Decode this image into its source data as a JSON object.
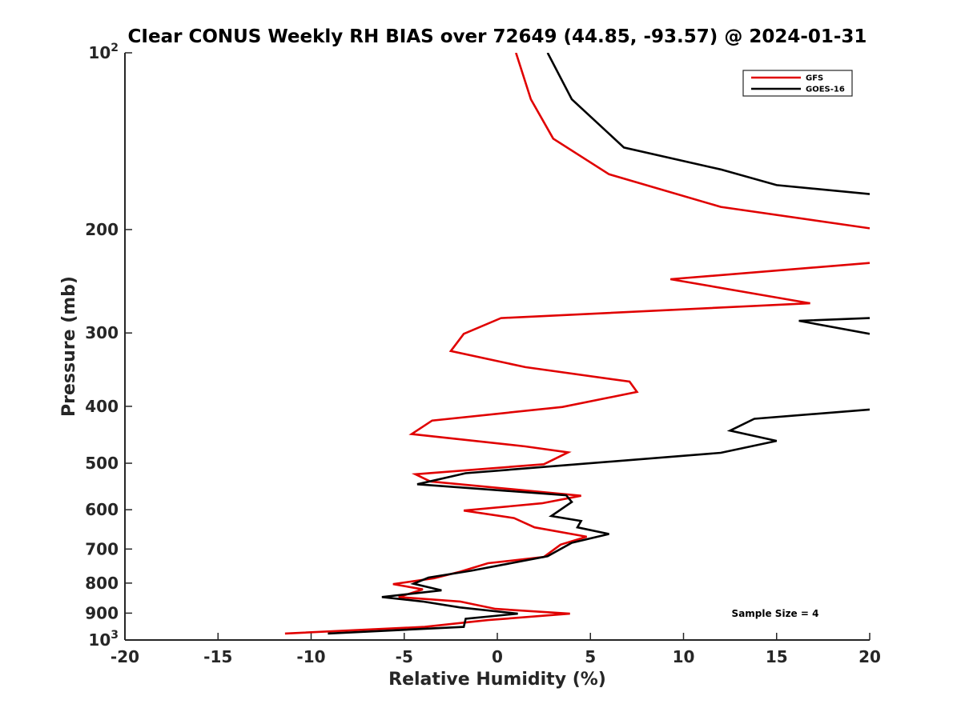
{
  "chart_data": {
    "type": "line",
    "title": "CIear CONUS Weekly RH BIAS over 72649 (44.85, -93.57) @ 2024-01-31",
    "xlabel": "Relative Humidity (%)",
    "ylabel": "Pressure (mb)",
    "xlim": [
      -20,
      20
    ],
    "ylim": [
      100,
      1000
    ],
    "yscale": "log",
    "yreversed": true,
    "grid": false,
    "legend_position": "top-right",
    "x_ticks": [
      "-20",
      "-15",
      "-10",
      "-5",
      "0",
      "5",
      "10",
      "15",
      "20"
    ],
    "y_ticks": [
      {
        "value": 100,
        "base": "10",
        "exp": "2"
      },
      {
        "value": 200,
        "base": "200",
        "exp": ""
      },
      {
        "value": 300,
        "base": "300",
        "exp": ""
      },
      {
        "value": 400,
        "base": "400",
        "exp": ""
      },
      {
        "value": 500,
        "base": "500",
        "exp": ""
      },
      {
        "value": 600,
        "base": "600",
        "exp": ""
      },
      {
        "value": 700,
        "base": "700",
        "exp": ""
      },
      {
        "value": 800,
        "base": "800",
        "exp": ""
      },
      {
        "value": 900,
        "base": "900",
        "exp": ""
      },
      {
        "value": 1000,
        "base": "10",
        "exp": "3"
      }
    ],
    "annotation": "Sample Size = 4",
    "series": [
      {
        "name": "GFS",
        "color": "#e00000",
        "points": [
          [
            1.0,
            100
          ],
          [
            1.8,
            120
          ],
          [
            3.0,
            140
          ],
          [
            6.0,
            161
          ],
          [
            12.0,
            183
          ],
          [
            20.0,
            199
          ],
          [
            null,
            null
          ],
          [
            20.0,
            228
          ],
          [
            9.3,
            243
          ],
          [
            16.8,
            267
          ],
          [
            0.2,
            283
          ],
          [
            -1.8,
            301
          ],
          [
            -2.5,
            322
          ],
          [
            1.5,
            343
          ],
          [
            7.1,
            363
          ],
          [
            7.5,
            378
          ],
          [
            3.5,
            401
          ],
          [
            -3.5,
            423
          ],
          [
            -4.6,
            446
          ],
          [
            1.5,
            468
          ],
          [
            3.8,
            479
          ],
          [
            2.5,
            502
          ],
          [
            -4.4,
            522
          ],
          [
            -3.6,
            537
          ],
          [
            4.5,
            568
          ],
          [
            2.4,
            585
          ],
          [
            -1.8,
            602
          ],
          [
            0.9,
            620
          ],
          [
            2.0,
            643
          ],
          [
            4.8,
            667
          ],
          [
            3.4,
            688
          ],
          [
            2.5,
            722
          ],
          [
            -0.5,
            740
          ],
          [
            -2.0,
            765
          ],
          [
            -3.4,
            785
          ],
          [
            -5.6,
            803
          ],
          [
            -4.0,
            820
          ],
          [
            -5.3,
            845
          ],
          [
            -2.0,
            860
          ],
          [
            -0.1,
            885
          ],
          [
            3.9,
            902
          ],
          [
            -0.5,
            925
          ],
          [
            -3.9,
            950
          ],
          [
            -11.4,
            975
          ]
        ]
      },
      {
        "name": "GOES-16",
        "color": "#000000",
        "points": [
          [
            2.7,
            100
          ],
          [
            4.0,
            120
          ],
          [
            6.8,
            145
          ],
          [
            12.0,
            158
          ],
          [
            15.0,
            168
          ],
          [
            20.0,
            174
          ],
          [
            null,
            null
          ],
          [
            20.0,
            283
          ],
          [
            16.2,
            286
          ],
          [
            20.0,
            301
          ],
          [
            null,
            null
          ],
          [
            20.0,
            405
          ],
          [
            13.8,
            420
          ],
          [
            12.5,
            440
          ],
          [
            15.0,
            458
          ],
          [
            12.0,
            480
          ],
          [
            -1.7,
            520
          ],
          [
            -4.3,
            543
          ],
          [
            3.7,
            567
          ],
          [
            4.0,
            582
          ],
          [
            2.9,
            615
          ],
          [
            4.5,
            627
          ],
          [
            4.3,
            643
          ],
          [
            6.0,
            660
          ],
          [
            4.0,
            683
          ],
          [
            2.7,
            720
          ],
          [
            -1.4,
            762
          ],
          [
            -3.7,
            783
          ],
          [
            -4.5,
            802
          ],
          [
            -3.0,
            823
          ],
          [
            -6.2,
            845
          ],
          [
            -4.0,
            860
          ],
          [
            -2.0,
            880
          ],
          [
            1.1,
            902
          ],
          [
            -1.7,
            920
          ],
          [
            -1.8,
            950
          ],
          [
            -9.1,
            975
          ]
        ]
      }
    ]
  }
}
